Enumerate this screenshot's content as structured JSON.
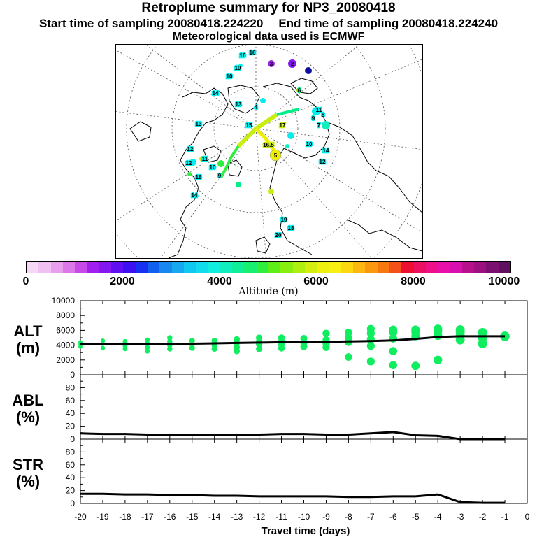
{
  "header": {
    "title": "Retroplume summary for NP3_20080418",
    "start_sampling": "Start time of sampling 20080418.224220",
    "end_sampling": "End time of sampling 20080418.224240",
    "met_data": "Meteorological data used is ECMWF"
  },
  "colorbar": {
    "label": "Altitude (m)",
    "ticks": [
      "0",
      "2000",
      "4000",
      "6000",
      "8000",
      "10000"
    ],
    "colors": [
      "#f4d8f6",
      "#f0c0f2",
      "#e8a0ee",
      "#dc78e8",
      "#c84ae6",
      "#a020f0",
      "#8418f0",
      "#6010f0",
      "#3c10f0",
      "#1830f0",
      "#1060f0",
      "#1888f0",
      "#18a8f0",
      "#10c8f0",
      "#10dced",
      "#10eee0",
      "#10eec0",
      "#10ee98",
      "#18ee70",
      "#30ee40",
      "#60ee18",
      "#88ee10",
      "#b0ee10",
      "#d4ee10",
      "#eef010",
      "#f8f010",
      "#fcd810",
      "#fcb810",
      "#fc9810",
      "#f87810",
      "#f45018",
      "#ee1030",
      "#ee1060",
      "#ee1088",
      "#e810a8",
      "#d810b0",
      "#b8108c",
      "#9c1080",
      "#7c1070",
      "#601060"
    ]
  },
  "map": {
    "labels": [
      {
        "t": "16",
        "c": "#00eeee"
      },
      {
        "t": "10",
        "c": "#00eeee"
      },
      {
        "t": "16",
        "c": "#00eeee"
      },
      {
        "t": "10",
        "c": "#00eeee"
      },
      {
        "t": "14",
        "c": "#00eeee"
      },
      {
        "t": "13",
        "c": "#00eeee"
      },
      {
        "t": "12",
        "c": "#00eeee"
      },
      {
        "t": "11",
        "c": "#00eeee"
      },
      {
        "t": "10",
        "c": "#00eeee"
      },
      {
        "t": "14",
        "c": "#00eeee"
      },
      {
        "t": "12",
        "c": "#00eeee"
      },
      {
        "t": "11",
        "c": "#00eeee"
      },
      {
        "t": "9",
        "c": "#00eeee"
      },
      {
        "t": "8",
        "c": "#00eeee"
      },
      {
        "t": "7",
        "c": "#00eeee"
      },
      {
        "t": "5",
        "c": "#eeee00"
      },
      {
        "t": "6",
        "c": "#00ee88"
      },
      {
        "t": "16.5",
        "c": "#c8ee10"
      },
      {
        "t": "17",
        "c": "#c8ee10"
      },
      {
        "t": "18",
        "c": "#00eeee"
      },
      {
        "t": "19",
        "c": "#00eeee"
      },
      {
        "t": "20",
        "c": "#00eeee"
      },
      {
        "t": "2",
        "c": "#8418f0"
      },
      {
        "t": "3",
        "c": "#a020f0"
      },
      {
        "t": "4",
        "c": "#00eeee"
      },
      {
        "t": "13",
        "c": "#00eeee"
      },
      {
        "t": "15",
        "c": "#00eeee"
      },
      {
        "t": "14",
        "c": "#00eeee"
      },
      {
        "t": "10",
        "c": "#00eeee"
      },
      {
        "t": "12",
        "c": "#00eeee"
      },
      {
        "t": "9",
        "c": "#00eeee"
      },
      {
        "t": "18",
        "c": "#00eeee"
      }
    ]
  },
  "chart_data": {
    "type": "line",
    "x": [
      -20,
      -19,
      -18,
      -17,
      -16,
      -15,
      -14,
      -13,
      -12,
      -11,
      -10,
      -9,
      -8,
      -7,
      -6,
      -5,
      -4,
      -3,
      -2,
      -1
    ],
    "xlabel": "Travel time (days)",
    "xlim": [
      -20,
      0
    ],
    "xticks": [
      "-20",
      "-19",
      "-18",
      "-17",
      "-16",
      "-15",
      "-14",
      "-13",
      "-12",
      "-11",
      "-10",
      "-9",
      "-8",
      "-7",
      "-6",
      "-5",
      "-4",
      "-3",
      "-2",
      "-1",
      "0"
    ],
    "panels": [
      {
        "name": "alt",
        "label_line1": "ALT",
        "label_line2": "(m)",
        "ylim": [
          0,
          10000
        ],
        "yticks": [
          "0",
          "2000",
          "4000",
          "6000",
          "8000",
          "10000"
        ],
        "mean_line": [
          4100,
          4100,
          4100,
          4100,
          4150,
          4200,
          4250,
          4300,
          4350,
          4400,
          4400,
          4450,
          4500,
          4550,
          4650,
          4850,
          5100,
          5200,
          5200,
          5200
        ],
        "scatter": [
          [
            -20,
            3800
          ],
          [
            -20,
            4100
          ],
          [
            -20,
            4400
          ],
          [
            -19,
            3600
          ],
          [
            -19,
            4200
          ],
          [
            -19,
            4600
          ],
          [
            -18,
            3500
          ],
          [
            -18,
            3900
          ],
          [
            -18,
            4300
          ],
          [
            -18,
            4500
          ],
          [
            -17,
            3200
          ],
          [
            -17,
            3700
          ],
          [
            -17,
            4200
          ],
          [
            -17,
            4700
          ],
          [
            -16,
            3500
          ],
          [
            -16,
            4000
          ],
          [
            -16,
            4500
          ],
          [
            -16,
            5000
          ],
          [
            -15,
            3600
          ],
          [
            -15,
            4100
          ],
          [
            -15,
            4600
          ],
          [
            -14,
            3500
          ],
          [
            -14,
            4000
          ],
          [
            -14,
            4600
          ],
          [
            -13,
            3200
          ],
          [
            -13,
            3700
          ],
          [
            -13,
            4300
          ],
          [
            -13,
            4800
          ],
          [
            -12,
            3500
          ],
          [
            -12,
            4100
          ],
          [
            -12,
            4500
          ],
          [
            -12,
            5000
          ],
          [
            -11,
            3600
          ],
          [
            -11,
            4100
          ],
          [
            -11,
            4500
          ],
          [
            -11,
            5000
          ],
          [
            -10,
            3800
          ],
          [
            -10,
            4300
          ],
          [
            -10,
            4900
          ],
          [
            -9,
            3700
          ],
          [
            -9,
            4200
          ],
          [
            -9,
            4700
          ],
          [
            -9,
            5600
          ],
          [
            -8,
            2400
          ],
          [
            -8,
            4400
          ],
          [
            -8,
            5000
          ],
          [
            -8,
            5700
          ],
          [
            -7,
            1800
          ],
          [
            -7,
            3900
          ],
          [
            -7,
            4800
          ],
          [
            -7,
            5600
          ],
          [
            -7,
            6200
          ],
          [
            -6,
            1300
          ],
          [
            -6,
            3200
          ],
          [
            -6,
            4900
          ],
          [
            -6,
            5700
          ],
          [
            -6,
            6100
          ],
          [
            -5,
            1200
          ],
          [
            -5,
            5200
          ],
          [
            -5,
            5800
          ],
          [
            -5,
            6100
          ],
          [
            -4,
            2000
          ],
          [
            -4,
            5300
          ],
          [
            -4,
            5900
          ],
          [
            -4,
            6200
          ],
          [
            -3,
            4700
          ],
          [
            -3,
            5300
          ],
          [
            -3,
            5800
          ],
          [
            -3,
            6100
          ],
          [
            -2,
            4200
          ],
          [
            -2,
            5000
          ],
          [
            -2,
            5700
          ],
          [
            -1,
            5200
          ]
        ]
      },
      {
        "name": "abl",
        "label_line1": "ABL",
        "label_line2": "(%)",
        "ylim": [
          0,
          100
        ],
        "yticks": [
          "0",
          "20",
          "40",
          "60",
          "80"
        ],
        "mean_line": [
          9,
          8,
          8,
          7,
          7,
          6,
          6,
          6,
          7,
          8,
          8,
          7,
          7,
          9,
          11,
          6,
          5,
          0,
          0,
          0
        ]
      },
      {
        "name": "str",
        "label_line1": "STR",
        "label_line2": "(%)",
        "ylim": [
          0,
          100
        ],
        "yticks": [
          "0",
          "20",
          "40",
          "60",
          "80"
        ],
        "mean_line": [
          15,
          15,
          14,
          14,
          13,
          13,
          12,
          12,
          11,
          11,
          11,
          11,
          10,
          10,
          11,
          11,
          14,
          2,
          1,
          1
        ]
      }
    ]
  }
}
